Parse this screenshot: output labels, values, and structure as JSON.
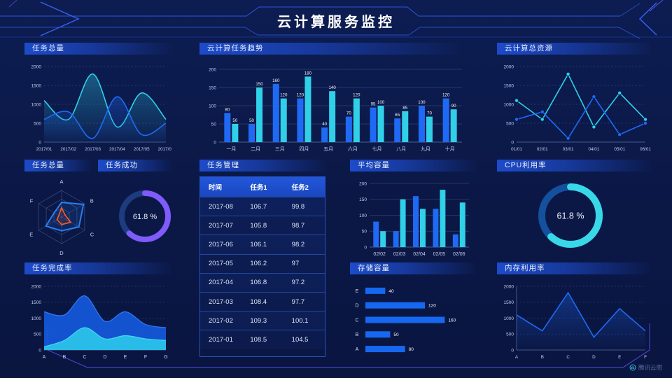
{
  "title": "云计算服务监控",
  "watermark": "腾讯云图",
  "theme": {
    "background": "#0c1a4b",
    "panel_title_accent": "#1d4bca",
    "blue": "#1f6af5",
    "cyan": "#30d0e8",
    "purple": "#7e5bfa",
    "red": "#ff5a2a",
    "frame_line": "#2e55d8",
    "bottom_frame_line": "#4a43cf"
  },
  "chart_data": [
    {
      "id": "task-total-line",
      "title": "任务总量",
      "type": "line",
      "smooth": true,
      "area": true,
      "grid": "dashed",
      "x": [
        "2017/01",
        "2017/02",
        "2017/03",
        "2017/04",
        "2017/05",
        "2017/06"
      ],
      "ylim": [
        0,
        2000
      ],
      "yticks": [
        0,
        500,
        1000,
        1500,
        2000
      ],
      "series": [
        {
          "name": "series-cyan",
          "color": "#30d0e8",
          "values": [
            1100,
            600,
            1800,
            400,
            1300,
            600
          ]
        },
        {
          "name": "series-blue",
          "color": "#1f6af5",
          "values": [
            600,
            800,
            100,
            1200,
            200,
            500
          ]
        }
      ]
    },
    {
      "id": "cloud-task-trend",
      "title": "云计算任务趋势",
      "type": "bar",
      "value_labels": true,
      "categories": [
        "一月",
        "二月",
        "三月",
        "四月",
        "五月",
        "六月",
        "七月",
        "八月",
        "九月",
        "十月"
      ],
      "ylim": [
        0,
        200
      ],
      "yticks": [
        0,
        50,
        100,
        150,
        200
      ],
      "series": [
        {
          "name": "series-blue",
          "color": "#1f6af5",
          "values": [
            80,
            50,
            160,
            120,
            40,
            70,
            95,
            65,
            100,
            120
          ]
        },
        {
          "name": "series-cyan",
          "color": "#30d0e8",
          "values": [
            50,
            150,
            120,
            180,
            140,
            120,
            100,
            85,
            70,
            90
          ]
        }
      ]
    },
    {
      "id": "cloud-total-resource",
      "title": "云计算总资源",
      "type": "line",
      "smooth": false,
      "markers": true,
      "grid": "dashed",
      "x": [
        "01/01",
        "02/01",
        "03/01",
        "04/01",
        "05/01",
        "06/01"
      ],
      "ylim": [
        0,
        2000
      ],
      "yticks": [
        0,
        500,
        1000,
        1500,
        2000
      ],
      "series": [
        {
          "name": "series-cyan",
          "color": "#30d0e8",
          "values": [
            1100,
            600,
            1800,
            400,
            1300,
            600
          ]
        },
        {
          "name": "series-blue",
          "color": "#1f6af5",
          "values": [
            600,
            800,
            100,
            1200,
            200,
            500
          ]
        }
      ]
    },
    {
      "id": "task-total-radar",
      "title": "任务总量",
      "type": "radar",
      "axes": [
        "A",
        "B",
        "C",
        "D",
        "E",
        "F"
      ],
      "max": 100,
      "series": [
        {
          "name": "series-blue",
          "color": "#2a7df0",
          "values": [
            55,
            95,
            75,
            52,
            68,
            32
          ]
        },
        {
          "name": "series-red",
          "color": "#ff5a2a",
          "values": [
            35,
            15,
            40,
            28,
            20,
            12
          ]
        }
      ]
    },
    {
      "id": "task-success",
      "title": "任务成功",
      "type": "donut",
      "value": 61.8,
      "label": "61.8 %",
      "color": "#7e5bfa",
      "track": "#1d3c80"
    },
    {
      "id": "task-table",
      "title": "任务管理",
      "type": "table",
      "headers": [
        "时间",
        "任务1",
        "任务2"
      ],
      "rows": [
        [
          "2017-08",
          "106.7",
          "99.8"
        ],
        [
          "2017-07",
          "105.8",
          "98.7"
        ],
        [
          "2017-06",
          "106.1",
          "98.2"
        ],
        [
          "2017-05",
          "106.2",
          "97"
        ],
        [
          "2017-04",
          "106.8",
          "97.2"
        ],
        [
          "2017-03",
          "108.4",
          "97.7"
        ],
        [
          "2017-02",
          "109.3",
          "100.1"
        ],
        [
          "2017-01",
          "108.5",
          "104.5"
        ]
      ]
    },
    {
      "id": "avg-capacity",
      "title": "平均容量",
      "type": "bar",
      "value_labels": false,
      "categories": [
        "02/02",
        "02/03",
        "02/04",
        "02/05",
        "02/06"
      ],
      "ylim": [
        0,
        200
      ],
      "yticks": [
        0,
        50,
        100,
        150,
        200
      ],
      "series": [
        {
          "name": "series-blue",
          "color": "#1f6af5",
          "values": [
            80,
            50,
            160,
            120,
            40
          ]
        },
        {
          "name": "series-cyan",
          "color": "#30d0e8",
          "values": [
            50,
            150,
            120,
            180,
            140
          ]
        }
      ]
    },
    {
      "id": "cpu-usage",
      "title": "CPU利用率",
      "type": "donut",
      "value": 61.8,
      "label": "61.8 %",
      "color": "#38d8e8",
      "track": "#14509e"
    },
    {
      "id": "storage-capacity",
      "title": "存储容量",
      "type": "hbar",
      "categories": [
        "E",
        "D",
        "C",
        "B",
        "A"
      ],
      "values": [
        40,
        120,
        160,
        50,
        80
      ],
      "xmax": 175,
      "color": "#1668f0"
    },
    {
      "id": "task-completion",
      "title": "任务完成率",
      "type": "stacked-area",
      "grid": "dashed",
      "x": [
        "A",
        "B",
        "C",
        "D",
        "E",
        "F",
        "G"
      ],
      "ylim": [
        0,
        2000
      ],
      "yticks": [
        0,
        500,
        1000,
        1500,
        2000
      ],
      "series": [
        {
          "name": "series-blue",
          "color": "#155ae0",
          "edge": "#2e7cf5",
          "values": [
            1200,
            1100,
            1700,
            900,
            1200,
            800,
            700
          ]
        },
        {
          "name": "series-cyan",
          "color": "#2bc8ea",
          "edge": "#45d8f2",
          "values": [
            100,
            300,
            700,
            350,
            450,
            350,
            300
          ]
        }
      ]
    },
    {
      "id": "memory-usage",
      "title": "内存利用率",
      "type": "line",
      "smooth": false,
      "markers": false,
      "area": true,
      "axis_lines": true,
      "grid": "dashed",
      "x": [
        "A",
        "B",
        "C",
        "D",
        "E",
        "F"
      ],
      "ylim": [
        0,
        2000
      ],
      "yticks": [
        0,
        500,
        1000,
        1500,
        2000
      ],
      "series": [
        {
          "name": "series-blue",
          "color": "#1f6af5",
          "values": [
            1100,
            600,
            1800,
            400,
            1300,
            600
          ]
        }
      ]
    }
  ]
}
